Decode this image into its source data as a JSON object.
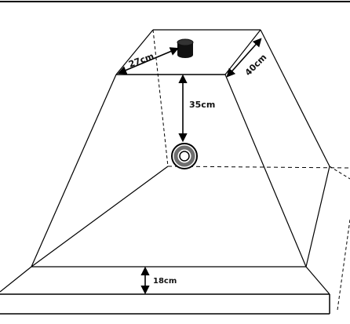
{
  "diagram": {
    "labels": {
      "width_top": "27cm",
      "depth_top": "40cm",
      "height_to_light": "35cm",
      "base_thickness": "18cm"
    },
    "icons": {
      "top_object": "cylinder-icon",
      "light_object": "ring-light-icon"
    },
    "colors": {
      "line": "#000000",
      "background": "#ffffff",
      "light_ring": "#6e6e6e",
      "cylinder": "#111111"
    }
  }
}
